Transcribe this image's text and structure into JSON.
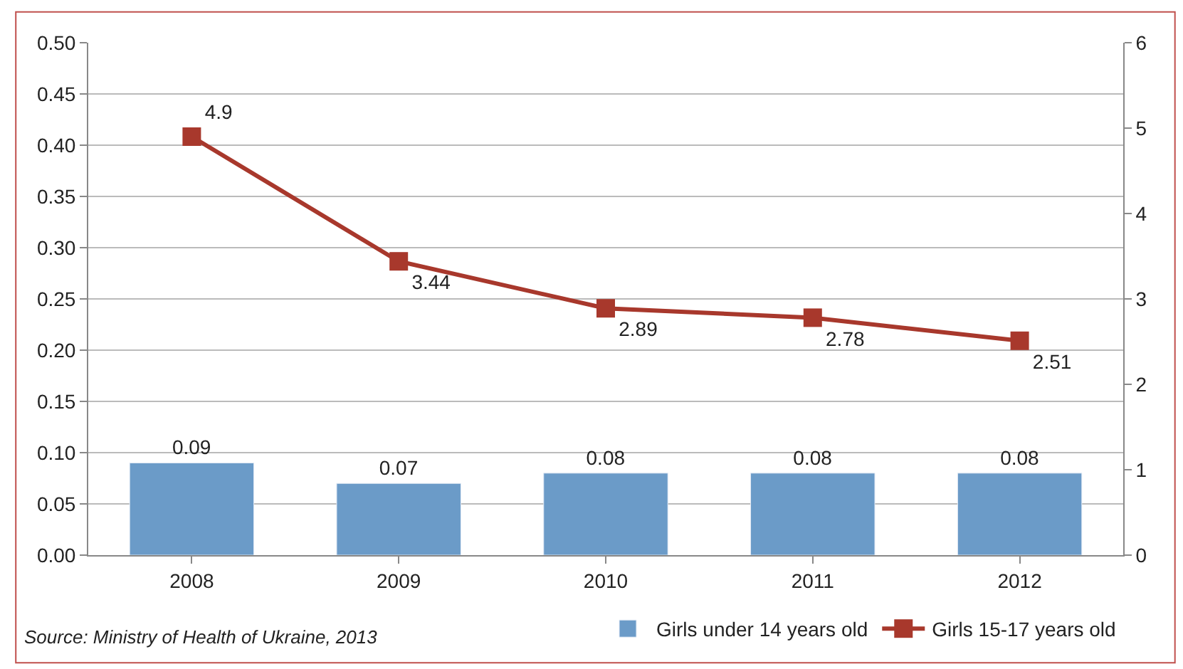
{
  "chart_data": {
    "type": "bar",
    "categories": [
      "2008",
      "2009",
      "2010",
      "2011",
      "2012"
    ],
    "series": [
      {
        "name": "Girls under 14 years old",
        "color": "#6b9bc8",
        "values": [
          0.09,
          0.07,
          0.08,
          0.08,
          0.08
        ]
      },
      {
        "name": "Girls 15-17 years old",
        "type": "line",
        "axis": "y2",
        "color": "#a8382c",
        "marker": "square",
        "values": [
          4.9,
          3.44,
          2.89,
          2.78,
          2.51
        ]
      }
    ],
    "ylim": [
      0,
      0.5
    ],
    "yticks": [
      {
        "value": 0,
        "label": "0.00"
      },
      {
        "value": 0.05,
        "label": "0.05"
      },
      {
        "value": 0.1,
        "label": "0.10"
      },
      {
        "value": 0.15,
        "label": "0.15"
      },
      {
        "value": 0.2,
        "label": "0.20"
      },
      {
        "value": 0.25,
        "label": "0.25"
      },
      {
        "value": 0.3,
        "label": "0.30"
      },
      {
        "value": 0.35,
        "label": "0.35"
      },
      {
        "value": 0.4,
        "label": "0.40"
      },
      {
        "value": 0.45,
        "label": "0.45"
      },
      {
        "value": 0.5,
        "label": "0.50"
      }
    ],
    "y2lim": [
      0,
      6
    ],
    "y2ticks": [
      0,
      1,
      2,
      3,
      4,
      5,
      6
    ],
    "grid": "y",
    "legend": "bottom right",
    "data_labels": true,
    "annotations": [
      "Source: Ministry of Health of Ukraine, 2013"
    ]
  }
}
